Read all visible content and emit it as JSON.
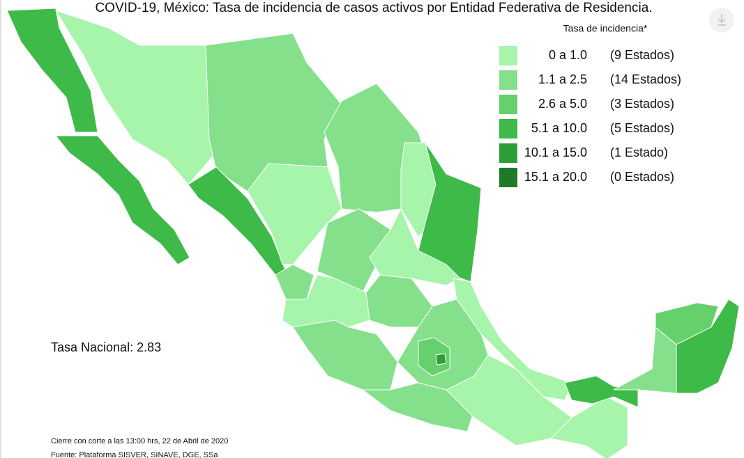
{
  "title": "COVID-19, México: Tasa de incidencia de casos activos por Entidad Federativa de Residencia.",
  "legend": {
    "title": "Tasa de incidencia*",
    "items": [
      {
        "range": "0 a 1.0",
        "count": "(9 Estados)",
        "color": "#a6f5aa"
      },
      {
        "range": "1.1 a 2.5",
        "count": "(14 Estados)",
        "color": "#85e08b"
      },
      {
        "range": "2.6 a 5.0",
        "count": "(3 Estados)",
        "color": "#66d06d"
      },
      {
        "range": "5.1 a 10.0",
        "count": "(5 Estados)",
        "color": "#3dba47"
      },
      {
        "range": "10.1 a 15.0",
        "count": "(1 Estado)",
        "color": "#2c9e37"
      },
      {
        "range": "15.1 a 20.0",
        "count": "(0 Estados)",
        "color": "#1d7a28"
      }
    ]
  },
  "national_rate": "Tasa Nacional: 2.83",
  "footnotes": [
    "Cierre con corte a las 13:00 hrs, 22 de Abril de 2020",
    "Fuente: Plataforma SISVER, SINAVE, DGE, SSa"
  ]
}
